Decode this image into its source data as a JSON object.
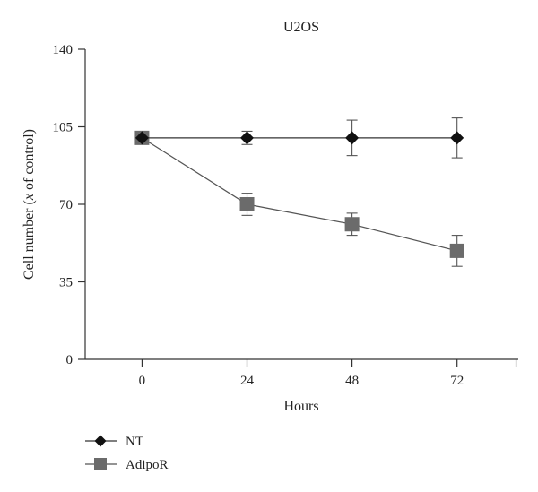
{
  "chart_data": {
    "type": "line",
    "title": "U2OS",
    "xlabel": "Hours",
    "ylabel_parts": [
      "Cell number (",
      "x",
      " of control)"
    ],
    "x": [
      0,
      24,
      48,
      72
    ],
    "xticks": [
      "0",
      "24",
      "48",
      "72"
    ],
    "xlim": [
      -13,
      86
    ],
    "ylim": [
      0,
      140
    ],
    "yticks": [
      "0",
      "35",
      "70",
      "105",
      "140"
    ],
    "grid": false,
    "legend_position": "bottom-left",
    "series": [
      {
        "name": "NT",
        "marker": "diamond",
        "color": "#111111",
        "line_color": "#333333",
        "values": [
          100,
          100,
          100,
          100
        ],
        "errors": [
          0,
          3,
          8,
          9
        ]
      },
      {
        "name": "AdipoR",
        "marker": "square",
        "color": "#6b6b6b",
        "line_color": "#555555",
        "values": [
          100,
          70,
          61,
          49
        ],
        "errors": [
          0,
          5,
          5,
          7
        ]
      }
    ]
  }
}
